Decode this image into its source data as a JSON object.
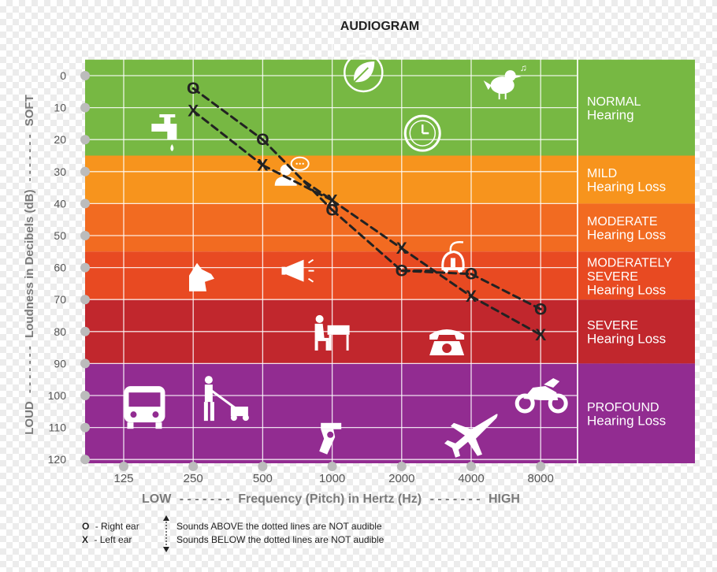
{
  "chart_data": {
    "type": "line",
    "title": "AUDIOGRAM",
    "xlabel": "Frequency (Pitch) in Hertz (Hz)",
    "xlabel_low": "LOW",
    "xlabel_high": "HIGH",
    "xlabel_dashes": "- - - - - - -",
    "ylabel": "Loudness in Decibels (dB)",
    "ylabel_top": "SOFT",
    "ylabel_bottom": "LOUD",
    "ylabel_dashes": "- - - - - - -",
    "x_categories": [
      "125",
      "250",
      "500",
      "1000",
      "2000",
      "4000",
      "8000"
    ],
    "y_ticks": [
      "0",
      "10",
      "20",
      "30",
      "40",
      "50",
      "60",
      "70",
      "80",
      "90",
      "100",
      "110",
      "120"
    ],
    "ylim": [
      0,
      120
    ],
    "y_inverted": true,
    "grid": true,
    "series": [
      {
        "marker": "O",
        "values": [
          null,
          4,
          20,
          42,
          61,
          62,
          73
        ],
        "color": "#222222"
      },
      {
        "marker": "X",
        "values": [
          null,
          11,
          28,
          39,
          54,
          69,
          81
        ],
        "color": "#222222"
      }
    ],
    "connectors": [
      {
        "from_x_index": 2.6,
        "from_y": 33,
        "to": "X",
        "to_index": 3
      },
      {
        "from_x_index": 4.45,
        "from_y": 61,
        "to": "O",
        "to_index": 4
      }
    ],
    "bands": [
      {
        "from": -5,
        "to": 25,
        "color": "#77b843",
        "label_lines": [
          "NORMAL",
          "Hearing"
        ]
      },
      {
        "from": 25,
        "to": 40,
        "color": "#f7941d",
        "label_lines": [
          "MILD",
          "Hearing Loss"
        ]
      },
      {
        "from": 40,
        "to": 55,
        "color": "#f26b21",
        "label_lines": [
          "MODERATE",
          "Hearing Loss"
        ]
      },
      {
        "from": 55,
        "to": 70,
        "color": "#e84a22",
        "label_lines": [
          "MODERATELY",
          "SEVERE",
          "Hearing Loss"
        ]
      },
      {
        "from": 70,
        "to": 90,
        "color": "#c1272d",
        "label_lines": [
          "SEVERE",
          "Hearing Loss"
        ]
      },
      {
        "from": 90,
        "to": 122,
        "color": "#922c91",
        "label_lines": [
          "PROFOUND",
          "Hearing Loss"
        ]
      }
    ],
    "icons": [
      {
        "name": "leaf-icon",
        "x_index": 3.45,
        "db": -1
      },
      {
        "name": "bird-icon",
        "x_index": 5.45,
        "db": 2
      },
      {
        "name": "faucet-icon",
        "x_index": 0.65,
        "db": 17
      },
      {
        "name": "clock-icon",
        "x_index": 4.3,
        "db": 18
      },
      {
        "name": "speaking-person-icon",
        "x_index": 2.4,
        "db": 30
      },
      {
        "name": "vacuum-icon",
        "x_index": 4.75,
        "db": 58
      },
      {
        "name": "dog-icon",
        "x_index": 1.1,
        "db": 63
      },
      {
        "name": "megaphone-icon",
        "x_index": 2.5,
        "db": 61
      },
      {
        "name": "piano-icon",
        "x_index": 3.0,
        "db": 81
      },
      {
        "name": "telephone-icon",
        "x_index": 4.65,
        "db": 83
      },
      {
        "name": "bus-icon",
        "x_index": 0.3,
        "db": 103
      },
      {
        "name": "lawnmower-icon",
        "x_index": 1.45,
        "db": 102
      },
      {
        "name": "motorcycle-icon",
        "x_index": 6.0,
        "db": 100
      },
      {
        "name": "gun-icon",
        "x_index": 2.95,
        "db": 113
      },
      {
        "name": "airplane-icon",
        "x_index": 5.0,
        "db": 112
      }
    ]
  },
  "legend": {
    "right_ear_symbol": "O",
    "right_ear_text": "- Right ear",
    "left_ear_symbol": "X",
    "left_ear_text": "- Left ear",
    "above_text": "Sounds ABOVE the dotted lines are NOT audible",
    "below_text": "Sounds BELOW the dotted lines are NOT audible"
  },
  "colors": {
    "label_panel_text": "#ffffff",
    "axis_text": "#555555",
    "grid": "#ffffff",
    "line": "#222222",
    "tick_dot": "#bcbcbc"
  }
}
